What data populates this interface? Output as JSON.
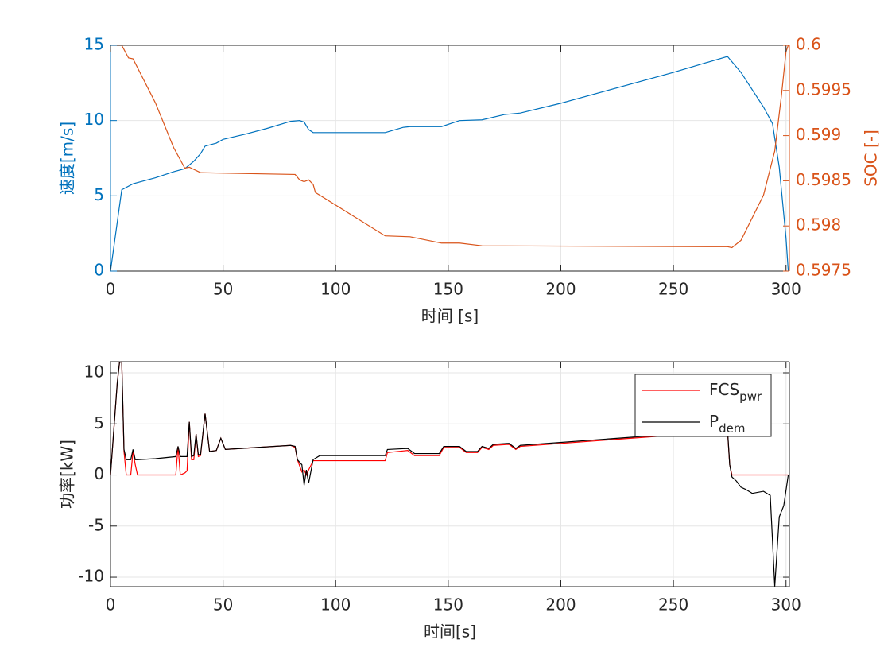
{
  "chart_data": [
    {
      "type": "line",
      "xlabel": "时间 [s]",
      "ylabel": "速度[m/s]",
      "y2label": "SOC [-]",
      "xlim": [
        0,
        301.5
      ],
      "xticks": [
        0,
        50,
        100,
        150,
        200,
        250,
        300
      ],
      "ylim": [
        0,
        15
      ],
      "yticks": [
        0,
        5,
        10,
        15
      ],
      "y2lim": [
        0.5975,
        0.6
      ],
      "y2ticks": [
        0.5975,
        0.598,
        0.5985,
        0.599,
        0.5995,
        0.6
      ],
      "ycolor": "#0072BD",
      "y2color": "#D95319",
      "grid": true,
      "series": [
        {
          "name": "速度",
          "color": "#0072BD",
          "x": [
            0,
            5,
            10,
            20,
            28,
            33,
            37,
            40,
            42,
            47,
            50,
            60,
            70,
            80,
            84,
            86,
            88,
            90,
            100,
            122,
            130,
            133,
            147,
            155,
            165,
            175,
            182,
            200,
            250,
            274,
            280,
            290,
            294,
            297,
            300,
            301
          ],
          "values": [
            0,
            5.4,
            5.8,
            6.2,
            6.6,
            6.8,
            7.3,
            7.8,
            8.3,
            8.5,
            8.75,
            9.1,
            9.5,
            9.95,
            10.0,
            9.9,
            9.4,
            9.2,
            9.2,
            9.2,
            9.55,
            9.6,
            9.6,
            10.0,
            10.05,
            10.4,
            10.5,
            11.15,
            13.2,
            14.26,
            13.2,
            10.9,
            9.8,
            6.9,
            2.2,
            0
          ]
        },
        {
          "name": "SOC",
          "color": "#D95319",
          "axis": "y2",
          "x": [
            0,
            5,
            8,
            10,
            20,
            28,
            33,
            35,
            40,
            60,
            82,
            84,
            86,
            88,
            90,
            91,
            122,
            133,
            147,
            155,
            165,
            274,
            276,
            280,
            290,
            295,
            298,
            300,
            301
          ],
          "values": [
            0.6,
            0.6,
            0.59986,
            0.59985,
            0.59936,
            0.59887,
            0.59864,
            0.59865,
            0.59859,
            0.59858,
            0.59857,
            0.59851,
            0.59849,
            0.59851,
            0.59846,
            0.59837,
            0.59789,
            0.59788,
            0.59781,
            0.59781,
            0.59778,
            0.59777,
            0.59776,
            0.59784,
            0.59834,
            0.59883,
            0.59945,
            0.59993,
            0.6
          ]
        }
      ]
    },
    {
      "type": "line",
      "xlabel": "时间[s]",
      "ylabel": "功率[kW]",
      "xlim": [
        0,
        301.5
      ],
      "xticks": [
        0,
        50,
        100,
        150,
        200,
        250,
        300
      ],
      "ylim": [
        -10.93,
        11.09
      ],
      "yticks": [
        -10,
        -5,
        0,
        5,
        10
      ],
      "ycolor": "#262626",
      "grid": true,
      "legend": "northeast",
      "x": [
        0,
        3,
        4,
        5,
        6,
        7,
        9,
        10,
        11,
        12,
        20,
        29,
        30,
        31,
        33,
        34,
        35,
        36,
        37,
        38,
        39,
        40,
        42,
        44,
        47,
        49,
        51,
        80,
        82,
        83,
        85,
        86,
        87,
        88,
        90,
        93,
        122,
        123,
        132,
        135,
        146,
        148,
        155,
        158,
        163,
        165,
        168,
        170,
        177,
        180,
        182,
        250,
        274,
        275,
        276,
        278,
        280,
        282,
        285,
        290,
        293,
        295,
        297,
        299,
        301
      ],
      "series": [
        {
          "name": "FCS",
          "subscript": "pwr",
          "color": "#FF0000",
          "values": [
            0,
            9,
            11,
            11.1,
            2.3,
            0,
            0,
            2.3,
            1.0,
            0,
            0,
            0,
            2.8,
            0,
            0.2,
            0.4,
            5.2,
            1.5,
            1.5,
            4.0,
            1.8,
            1.9,
            6.0,
            2.3,
            2.4,
            3.6,
            2.5,
            2.9,
            2.7,
            1.5,
            0.3,
            0.5,
            0,
            0.5,
            1.4,
            1.4,
            1.4,
            2.2,
            2.4,
            1.9,
            1.9,
            2.7,
            2.7,
            2.2,
            2.2,
            2.7,
            2.5,
            2.9,
            3.0,
            2.5,
            2.8,
            3.9,
            4.4,
            1.0,
            0,
            0,
            0,
            0,
            0,
            0,
            0,
            0,
            0,
            0,
            0
          ]
        },
        {
          "name": "P",
          "subscript": "dem",
          "color": "#000000",
          "values": [
            0,
            9,
            11,
            11.1,
            2.5,
            1.5,
            1.5,
            2.5,
            1.5,
            1.5,
            1.6,
            1.8,
            2.8,
            1.8,
            1.8,
            1.8,
            5.2,
            1.8,
            1.9,
            4.0,
            2.0,
            2.0,
            6.0,
            2.3,
            2.4,
            3.6,
            2.5,
            2.9,
            2.8,
            1.5,
            1.0,
            -1.0,
            0.5,
            -0.8,
            1.5,
            1.9,
            1.9,
            2.5,
            2.6,
            2.1,
            2.1,
            2.8,
            2.8,
            2.3,
            2.3,
            2.8,
            2.6,
            3.0,
            3.1,
            2.6,
            2.9,
            4.0,
            4.5,
            1.0,
            -0.2,
            -0.6,
            -1.2,
            -1.4,
            -1.8,
            -1.6,
            -2.0,
            -10.9,
            -4.1,
            -3.0,
            0
          ]
        }
      ]
    }
  ]
}
